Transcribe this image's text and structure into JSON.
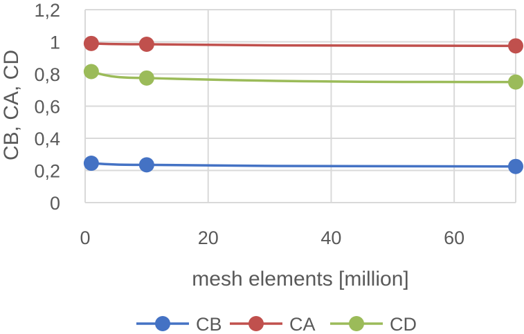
{
  "chart_data": {
    "type": "line",
    "title": "",
    "xlabel": "mesh elements [million]",
    "ylabel": "CB, CA, CD",
    "xlim": [
      0,
      70
    ],
    "ylim": [
      0,
      1.2
    ],
    "x_ticks": [
      0,
      20,
      40,
      60
    ],
    "y_ticks": [
      0,
      0.2,
      0.4,
      0.6,
      0.8,
      1,
      1.2
    ],
    "y_tick_labels": [
      "0",
      "0,2",
      "0,4",
      "0,6",
      "0,8",
      "1",
      "1,2"
    ],
    "grid": true,
    "legend_position": "bottom",
    "series": [
      {
        "name": "CB",
        "color": "#4472c4",
        "x": [
          1,
          10,
          70
        ],
        "y": [
          0.245,
          0.235,
          0.225
        ]
      },
      {
        "name": "CA",
        "color": "#c0504d",
        "x": [
          1,
          10,
          70
        ],
        "y": [
          0.99,
          0.985,
          0.975
        ]
      },
      {
        "name": "CD",
        "color": "#9bbb59",
        "x": [
          1,
          10,
          70
        ],
        "y": [
          0.815,
          0.775,
          0.75
        ]
      }
    ]
  }
}
